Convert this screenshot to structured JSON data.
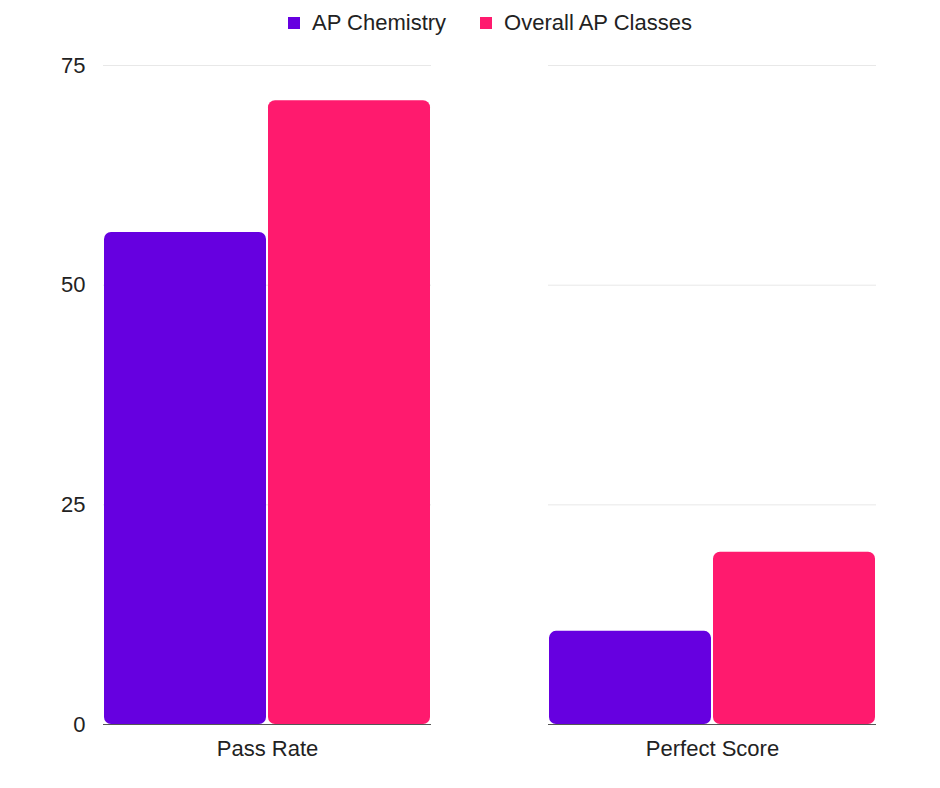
{
  "chart_data": {
    "type": "bar",
    "categories": [
      "Pass Rate",
      "Perfect Score"
    ],
    "series": [
      {
        "name": "AP Chemistry",
        "color": "#6600e0",
        "values": [
          56,
          10.6
        ]
      },
      {
        "name": "Overall AP Classes",
        "color": "#ff1a6e",
        "values": [
          71,
          19.6
        ]
      }
    ],
    "ylim": [
      0,
      75
    ],
    "yticks": [
      0,
      25,
      50,
      75
    ],
    "grid": true,
    "legend": "top"
  }
}
